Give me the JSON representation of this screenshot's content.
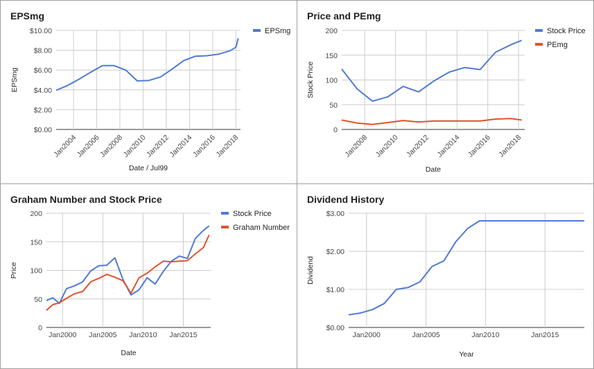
{
  "chart_data": [
    {
      "type": "line",
      "title": "EPSmg",
      "xlabel": "Date / Jul99",
      "ylabel": "EPSmg",
      "legend": "right",
      "x_ticks": [
        "Jan2004",
        "Jan2006",
        "Jan2008",
        "Jan2010",
        "Jan2012",
        "Jan2014",
        "Jan2016",
        "Jan2018"
      ],
      "y_ticks": [
        "$0.00",
        "$2.00",
        "$4.00",
        "$6.00",
        "$8.00",
        "$10.00"
      ],
      "xlim": [
        2002.5,
        2018.4
      ],
      "ylim": [
        0,
        10
      ],
      "series": [
        {
          "name": "EPSmg",
          "color": "#4e7ad6",
          "x": [
            2002.5,
            2003.5,
            2004.5,
            2005.5,
            2006.5,
            2007.5,
            2008.5,
            2009.5,
            2010.5,
            2011.5,
            2012.5,
            2013.5,
            2014.5,
            2015.5,
            2016.5,
            2017.5,
            2018.0,
            2018.2
          ],
          "y": [
            3.95,
            4.45,
            5.1,
            5.8,
            6.45,
            6.45,
            6.0,
            4.9,
            4.95,
            5.3,
            6.1,
            6.95,
            7.4,
            7.45,
            7.6,
            7.95,
            8.3,
            9.2
          ]
        }
      ]
    },
    {
      "type": "line",
      "title": "Price and PEmg",
      "xlabel": "Date",
      "ylabel": "Stock Price",
      "legend": "right",
      "x_ticks": [
        "Jan2008",
        "Jan2010",
        "Jan2012",
        "Jan2014",
        "Jan2016",
        "Jan2018"
      ],
      "y_ticks": [
        "0",
        "50",
        "100",
        "150",
        "200"
      ],
      "xlim": [
        2006.5,
        2018.4
      ],
      "ylim": [
        0,
        200
      ],
      "series": [
        {
          "name": "Stock Price",
          "color": "#4e7ad6",
          "x": [
            2006.5,
            2007.5,
            2008.5,
            2009.5,
            2010.5,
            2011.5,
            2012.5,
            2013.5,
            2014.5,
            2015.5,
            2016.5,
            2017.5,
            2018.2
          ],
          "y": [
            122,
            82,
            57,
            66,
            87,
            76,
            98,
            116,
            125,
            121,
            156,
            171,
            180
          ]
        },
        {
          "name": "PEmg",
          "color": "#e0522d",
          "x": [
            2006.5,
            2007.5,
            2008.5,
            2009.5,
            2010.5,
            2011.5,
            2012.5,
            2013.5,
            2014.5,
            2015.5,
            2016.5,
            2017.5,
            2018.2
          ],
          "y": [
            19,
            13,
            10,
            14,
            18,
            15,
            17,
            17,
            17,
            17,
            21,
            22,
            19
          ]
        }
      ]
    },
    {
      "type": "line",
      "title": "Graham Number and Stock Price",
      "xlabel": "Date",
      "ylabel": "Price",
      "legend": "right",
      "x_ticks": [
        "Jan2000",
        "Jan2005",
        "Jan2010",
        "Jan2015"
      ],
      "y_ticks": [
        "0",
        "50",
        "100",
        "150",
        "200"
      ],
      "xlim": [
        1998.0,
        2018.4
      ],
      "ylim": [
        0,
        200
      ],
      "series": [
        {
          "name": "Stock Price",
          "color": "#4e7ad6",
          "x": [
            1998.0,
            1998.8,
            1999.6,
            2000.5,
            2001.5,
            2002.5,
            2003.5,
            2004.5,
            2005.5,
            2006.5,
            2007.5,
            2008.5,
            2009.5,
            2010.5,
            2011.5,
            2012.5,
            2013.5,
            2014.5,
            2015.5,
            2016.5,
            2017.5,
            2018.2
          ],
          "y": [
            47,
            52,
            42,
            68,
            73,
            80,
            99,
            108,
            109,
            122,
            84,
            57,
            66,
            87,
            76,
            98,
            116,
            125,
            121,
            156,
            170,
            178
          ]
        },
        {
          "name": "Graham Number",
          "color": "#e0522d",
          "x": [
            1998.0,
            1998.8,
            1999.6,
            2000.5,
            2001.5,
            2002.5,
            2003.5,
            2004.5,
            2005.5,
            2006.5,
            2007.5,
            2008.5,
            2009.5,
            2010.5,
            2011.5,
            2012.5,
            2013.5,
            2014.5,
            2015.5,
            2016.5,
            2017.5,
            2018.2
          ],
          "y": [
            30,
            40,
            43,
            51,
            59,
            63,
            80,
            86,
            93,
            88,
            82,
            60,
            87,
            95,
            106,
            116,
            115,
            116,
            117,
            129,
            140,
            162
          ]
        }
      ]
    },
    {
      "type": "line",
      "title": "Dividend History",
      "xlabel": "Year",
      "ylabel": "Dividend",
      "legend": "none",
      "x_ticks": [
        "Jan2000",
        "Jan2005",
        "Jan2010",
        "Jan2015"
      ],
      "y_ticks": [
        "$0.00",
        "$1.00",
        "$2.00",
        "$3.00"
      ],
      "xlim": [
        1998.5,
        2018.3
      ],
      "ylim": [
        0,
        3
      ],
      "series": [
        {
          "name": "",
          "color": "#4e7ad6",
          "x": [
            1998.5,
            1999.5,
            2000.5,
            2001.5,
            2002.5,
            2003.5,
            2004.5,
            2005.5,
            2006.5,
            2007.5,
            2008.5,
            2009.5,
            2010.5,
            2011.5,
            2012.5,
            2013.5,
            2014.5,
            2015.5,
            2016.5,
            2017.5,
            2018.3
          ],
          "y": [
            0.33,
            0.38,
            0.47,
            0.63,
            1.0,
            1.05,
            1.2,
            1.6,
            1.75,
            2.25,
            2.6,
            2.8,
            2.8,
            2.8,
            2.8,
            2.8,
            2.8,
            2.8,
            2.8,
            2.8,
            2.8
          ]
        }
      ]
    }
  ]
}
